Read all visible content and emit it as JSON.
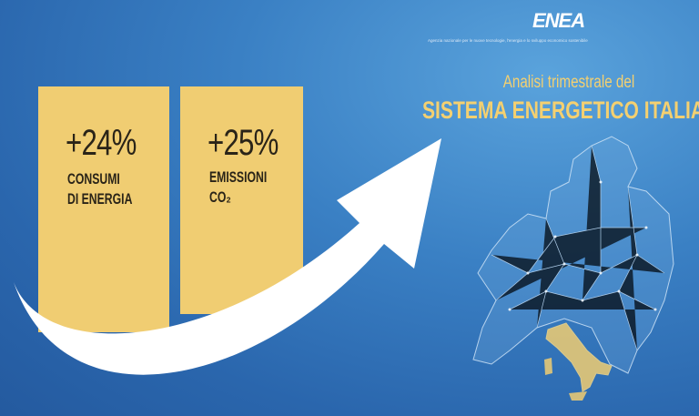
{
  "header": {
    "logo": "ENEA",
    "tagline": "Agenzia nazionale per le nuove tecnologie, l'energia e lo sviluppo economico sostenibile",
    "title_line1": "Analisi trimestrale del",
    "title_line2": "SISTEMA ENERGETICO ITALIANO"
  },
  "cards": [
    {
      "value": "+24%",
      "lines": [
        "CONSUMI",
        "DI ENERGIA"
      ]
    },
    {
      "value": "+25%",
      "lines": [
        "EMISSIONI",
        "CO₂"
      ]
    }
  ]
}
